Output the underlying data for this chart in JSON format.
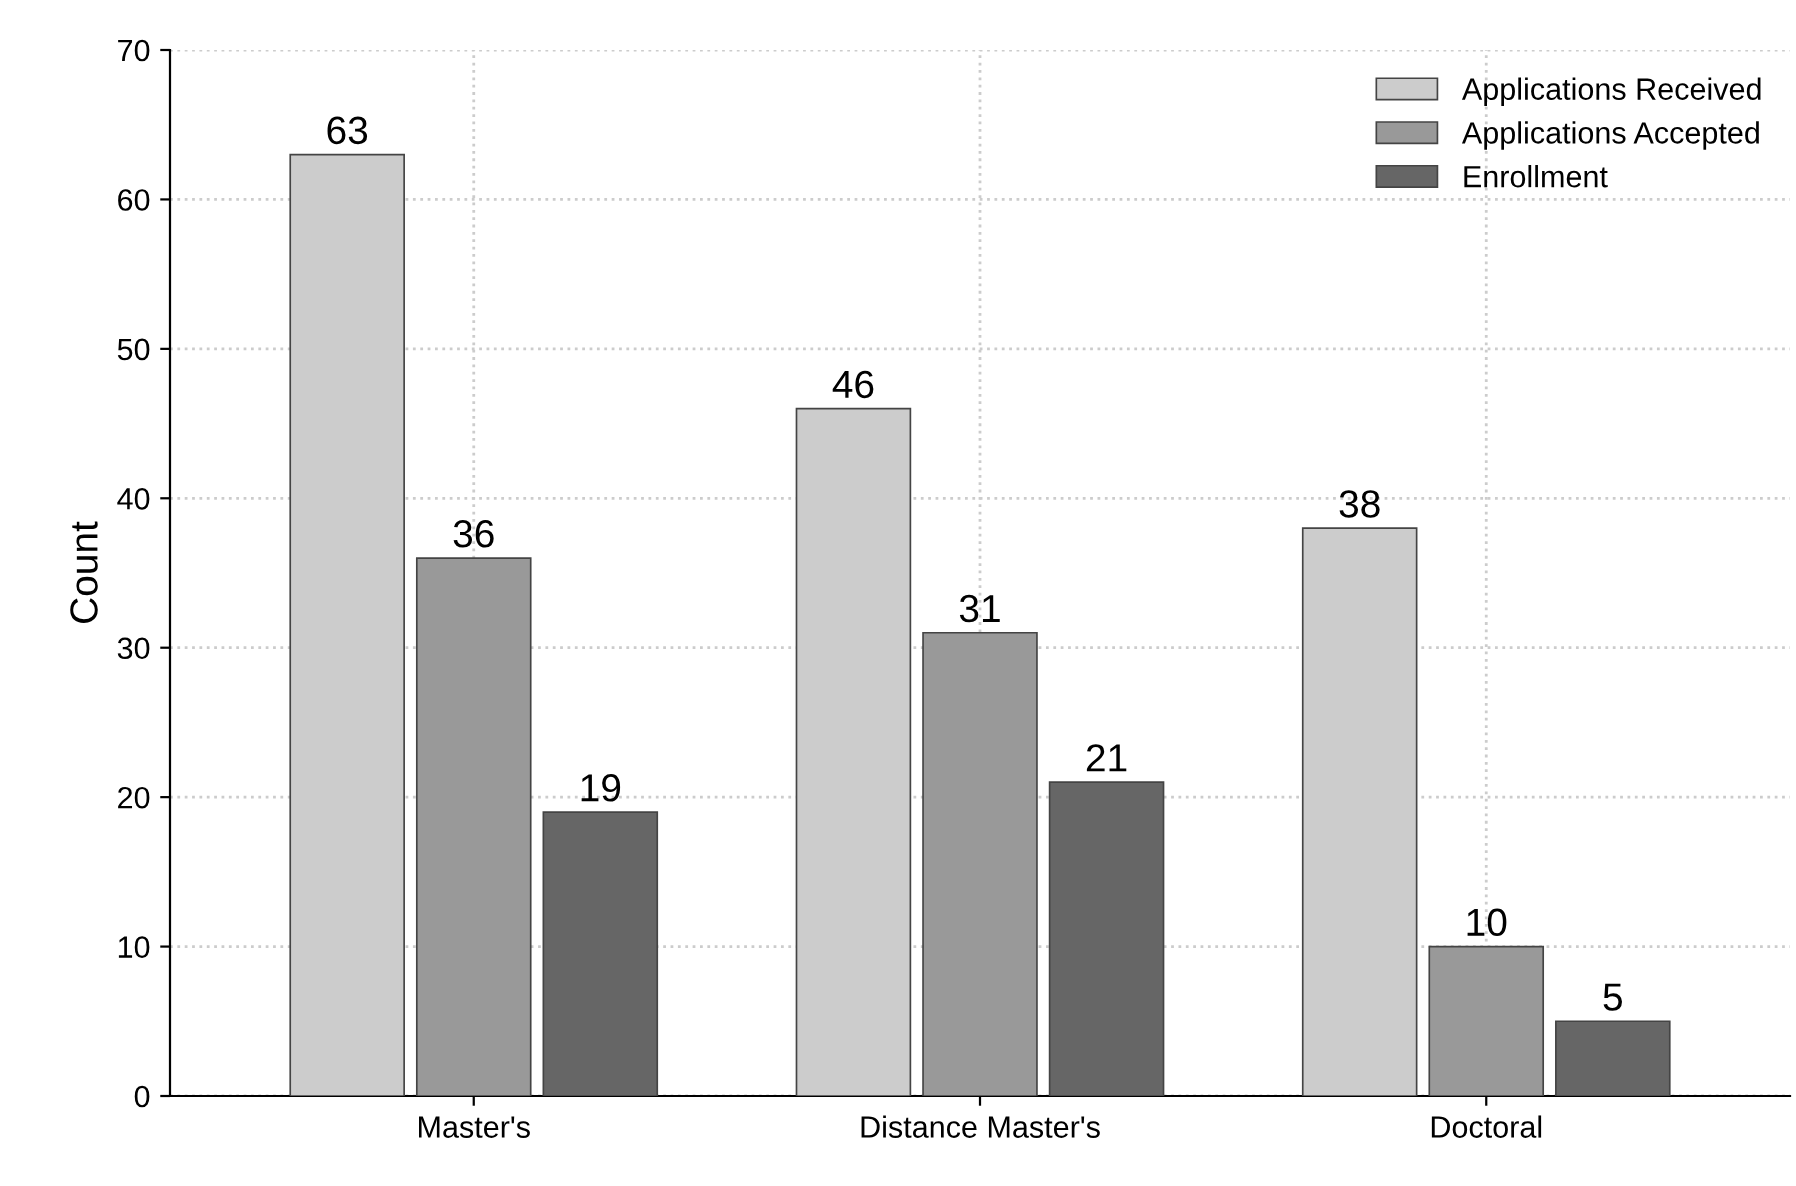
{
  "chart_data": {
    "type": "bar",
    "ylabel": "Count",
    "categories": [
      "Master's",
      "Distance Master's",
      "Doctoral"
    ],
    "series": [
      {
        "name": "Applications Received",
        "color": "#cccccc",
        "values": [
          63,
          46,
          38
        ]
      },
      {
        "name": "Applications Accepted",
        "color": "#999999",
        "values": [
          36,
          31,
          10
        ]
      },
      {
        "name": "Enrollment",
        "color": "#666666",
        "values": [
          19,
          21,
          5
        ]
      }
    ],
    "ylim": [
      0,
      70
    ],
    "yticks": [
      0,
      10,
      20,
      30,
      40,
      50,
      60,
      70
    ],
    "grid": true,
    "legend": "top right",
    "data_labels": true
  }
}
